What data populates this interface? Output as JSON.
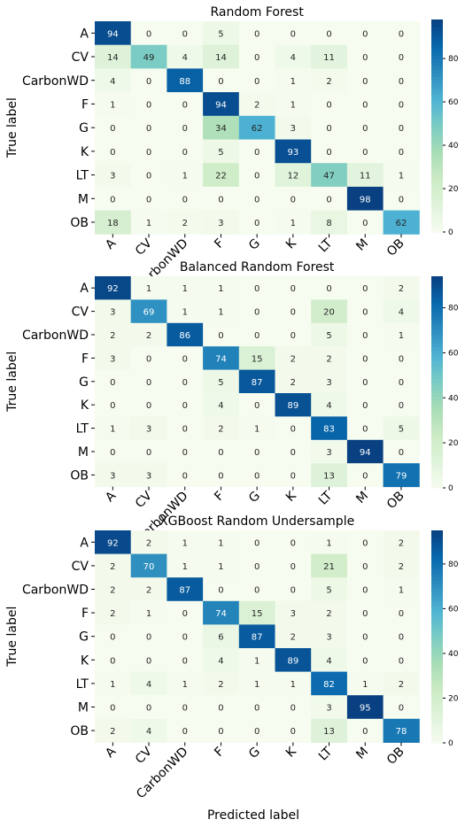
{
  "figure": {
    "xlabel": "Predicted label",
    "colorbar_ticks": [
      0,
      20,
      40,
      60,
      80
    ],
    "colormap": [
      "#f7fcf0",
      "#e0f3db",
      "#ccebc5",
      "#a8ddb5",
      "#7bccc4",
      "#4eb3d3",
      "#2b8cbe",
      "#0868ac",
      "#084081"
    ]
  },
  "chart_data": [
    {
      "type": "heatmap",
      "title": "Random Forest",
      "ylabel": "True label",
      "xlabel": "",
      "rows": [
        "A",
        "CV",
        "CarbonWD",
        "F",
        "G",
        "K",
        "LT",
        "M",
        "OB"
      ],
      "cols": [
        "A",
        "CV",
        "CarbonWD",
        "F",
        "G",
        "K",
        "LT",
        "M",
        "OB"
      ],
      "values": [
        [
          94,
          0,
          0,
          5,
          0,
          0,
          0,
          0,
          0
        ],
        [
          14,
          49,
          4,
          14,
          0,
          4,
          11,
          0,
          0
        ],
        [
          4,
          0,
          88,
          0,
          0,
          1,
          2,
          0,
          0
        ],
        [
          1,
          0,
          0,
          94,
          2,
          1,
          0,
          0,
          0
        ],
        [
          0,
          0,
          0,
          34,
          62,
          3,
          0,
          0,
          0
        ],
        [
          0,
          0,
          0,
          5,
          0,
          93,
          0,
          0,
          0
        ],
        [
          3,
          0,
          1,
          22,
          0,
          12,
          47,
          11,
          1
        ],
        [
          0,
          0,
          0,
          0,
          0,
          0,
          0,
          98,
          0
        ],
        [
          18,
          1,
          2,
          3,
          0,
          1,
          8,
          0,
          62
        ]
      ],
      "vmin": 0,
      "vmax": 98
    },
    {
      "type": "heatmap",
      "title": "Balanced Random Forest",
      "ylabel": "True label",
      "xlabel": "",
      "rows": [
        "A",
        "CV",
        "CarbonWD",
        "F",
        "G",
        "K",
        "LT",
        "M",
        "OB"
      ],
      "cols": [
        "A",
        "CV",
        "CarbonWD",
        "F",
        "G",
        "K",
        "LT",
        "M",
        "OB"
      ],
      "values": [
        [
          92,
          1,
          1,
          1,
          0,
          0,
          0,
          0,
          2
        ],
        [
          3,
          69,
          1,
          1,
          0,
          0,
          20,
          0,
          4
        ],
        [
          2,
          2,
          86,
          0,
          0,
          0,
          5,
          0,
          1
        ],
        [
          3,
          0,
          0,
          74,
          15,
          2,
          2,
          0,
          0
        ],
        [
          0,
          0,
          0,
          5,
          87,
          2,
          3,
          0,
          0
        ],
        [
          0,
          0,
          0,
          4,
          0,
          89,
          4,
          0,
          0
        ],
        [
          1,
          3,
          0,
          2,
          1,
          0,
          83,
          0,
          5
        ],
        [
          0,
          0,
          0,
          0,
          0,
          0,
          3,
          94,
          0
        ],
        [
          3,
          3,
          0,
          0,
          0,
          0,
          13,
          0,
          79
        ]
      ],
      "vmin": 0,
      "vmax": 94
    },
    {
      "type": "heatmap",
      "title": "XGBoost Random Undersample",
      "ylabel": "True label",
      "xlabel": "Predicted label",
      "rows": [
        "A",
        "CV",
        "CarbonWD",
        "F",
        "G",
        "K",
        "LT",
        "M",
        "OB"
      ],
      "cols": [
        "A",
        "CV",
        "CarbonWD",
        "F",
        "G",
        "K",
        "LT",
        "M",
        "OB"
      ],
      "values": [
        [
          92,
          2,
          1,
          1,
          0,
          0,
          1,
          0,
          2
        ],
        [
          2,
          70,
          1,
          1,
          0,
          0,
          21,
          0,
          2
        ],
        [
          2,
          2,
          87,
          0,
          0,
          0,
          5,
          0,
          1
        ],
        [
          2,
          1,
          0,
          74,
          15,
          3,
          2,
          0,
          0
        ],
        [
          0,
          0,
          0,
          6,
          87,
          2,
          3,
          0,
          0
        ],
        [
          0,
          0,
          0,
          4,
          1,
          89,
          4,
          0,
          0
        ],
        [
          1,
          4,
          1,
          2,
          1,
          1,
          82,
          1,
          2
        ],
        [
          0,
          0,
          0,
          0,
          0,
          0,
          3,
          95,
          0
        ],
        [
          2,
          4,
          0,
          0,
          0,
          0,
          13,
          0,
          78
        ]
      ],
      "vmin": 0,
      "vmax": 95
    }
  ]
}
